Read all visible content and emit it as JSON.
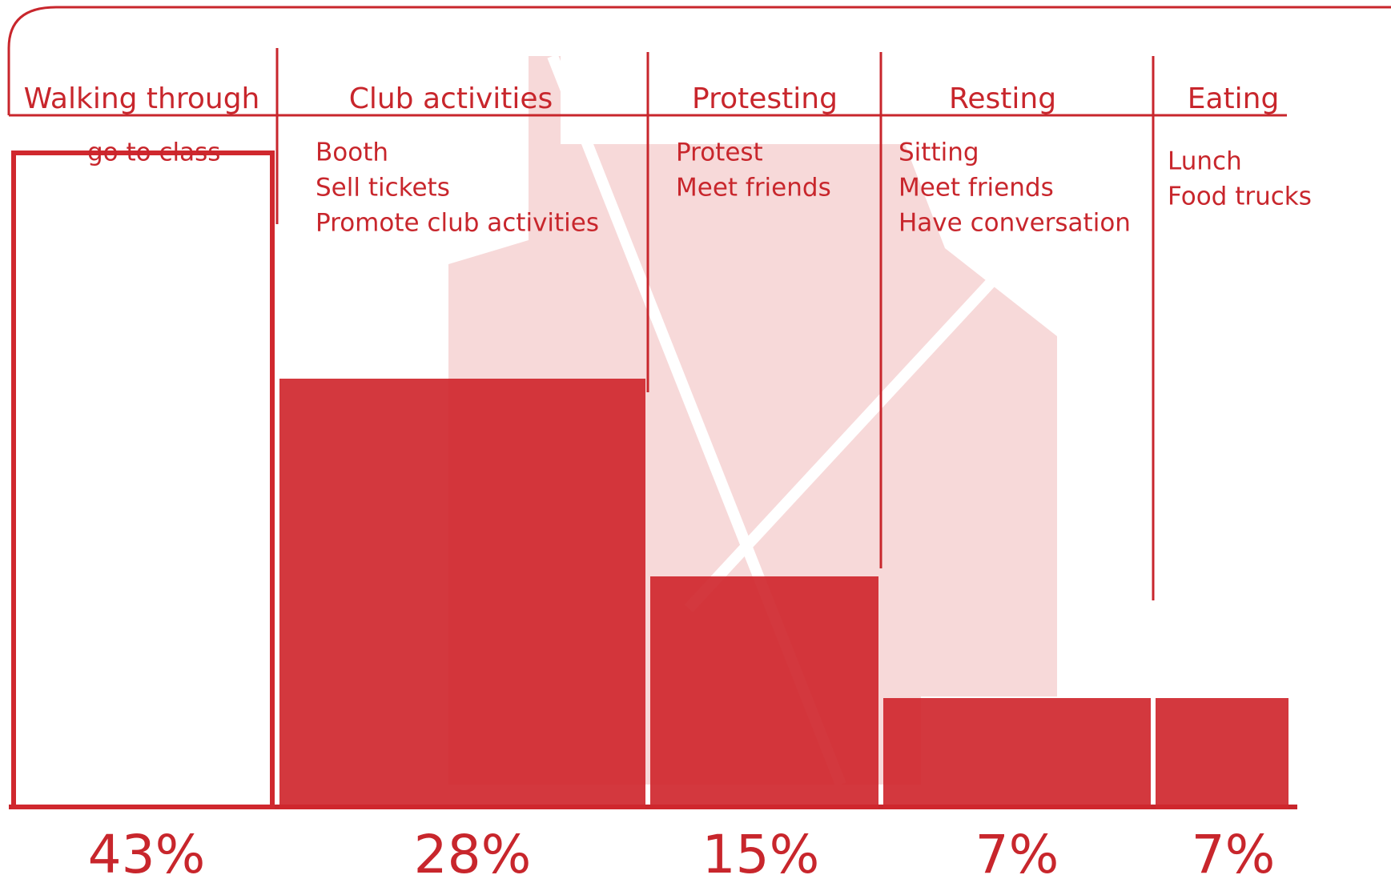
{
  "chart_data": {
    "type": "bar",
    "categories": [
      "Walking through",
      "Club activities",
      "Protesting",
      "Resting",
      "Eating"
    ],
    "activities": [
      [
        "go to class"
      ],
      [
        "Booth",
        "Sell tickets",
        "Promote club activities"
      ],
      [
        "Protest",
        "Meet friends"
      ],
      [
        "Sitting",
        "Meet friends",
        "Have conversation"
      ],
      [
        "Lunch",
        "Food trucks"
      ]
    ],
    "values": [
      43,
      28,
      15,
      7,
      7
    ],
    "value_labels": [
      "43%",
      "28%",
      "15%",
      "7%",
      "7%"
    ],
    "color": "#d0282e"
  }
}
